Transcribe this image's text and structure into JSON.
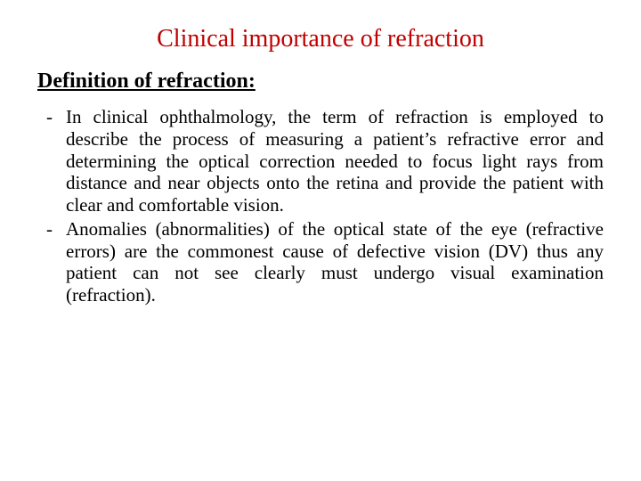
{
  "title": {
    "text": "Clinical importance of refraction",
    "color": "#c00000",
    "fontsize": 28
  },
  "subheading": {
    "text": "Definition of refraction:",
    "fontsize": 24,
    "underline": true,
    "bold": true
  },
  "bullets": [
    "In clinical ophthalmology, the term of refraction is employed to describe the process of measuring a patient’s refractive error and determining the optical correction needed to focus light rays from distance and near objects onto the retina and provide the patient with clear and comfortable vision.",
    "Anomalies (abnormalities) of the optical state of the eye (refractive errors) are the commonest cause of  defective vision (DV) thus any patient can not see clearly must undergo visual examination (refraction)."
  ],
  "body_fontsize": 21,
  "background_color": "#ffffff"
}
